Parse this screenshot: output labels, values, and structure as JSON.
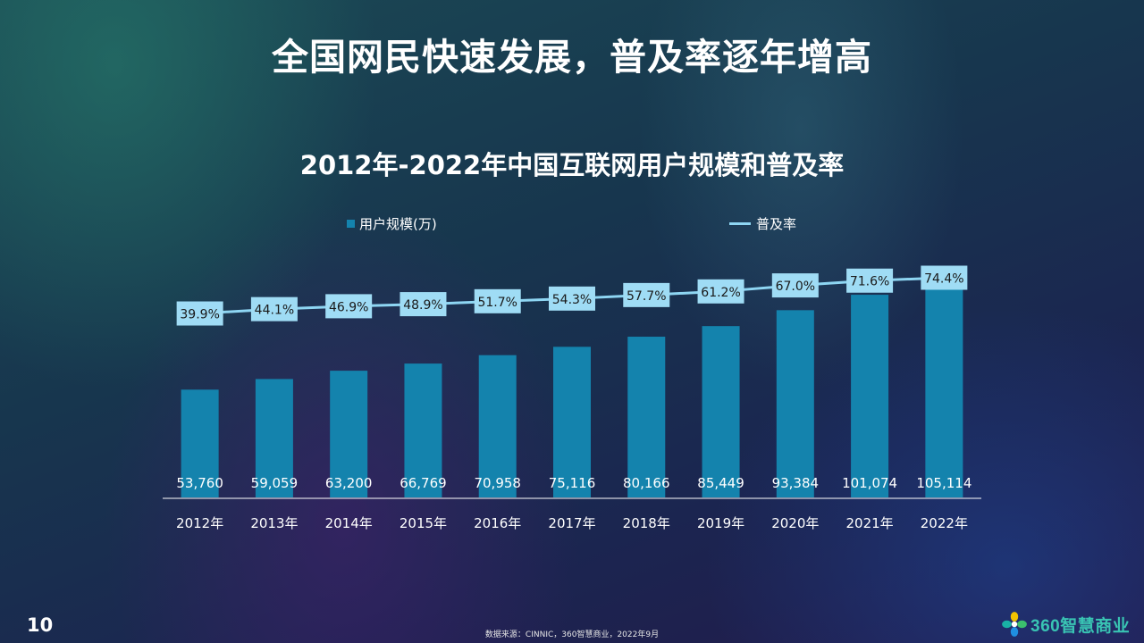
{
  "slide": {
    "title": "全国网民快速发展，普及率逐年增高",
    "page_number": "10",
    "source": "数据来源：CINNIC，360智慧商业，2022年9月",
    "brand_name": "360智慧商业"
  },
  "colors": {
    "bar": "#1483ad",
    "line": "#8ed6f3",
    "label_box": "#9fdcf5",
    "axis": "#ffffff",
    "brand": "#39c4b3"
  },
  "chart_data": {
    "type": "bar",
    "title": "2012年-2022年中国互联网用户规模和普及率",
    "categories": [
      "2012年",
      "2013年",
      "2014年",
      "2015年",
      "2016年",
      "2017年",
      "2018年",
      "2019年",
      "2020年",
      "2021年",
      "2022年"
    ],
    "series": [
      {
        "name": "用户规模(万)",
        "type": "bar",
        "axis": "left",
        "values": [
          53760,
          59059,
          63200,
          66769,
          70958,
          75116,
          80166,
          85449,
          93384,
          101074,
          105114
        ],
        "labels": [
          "53,760",
          "59,059",
          "63,200",
          "66,769",
          "70,958",
          "75,116",
          "80,166",
          "85,449",
          "93,384",
          "101,074",
          "105,114"
        ]
      },
      {
        "name": "普及率",
        "type": "line",
        "axis": "right",
        "values": [
          39.9,
          44.1,
          46.9,
          48.9,
          51.7,
          54.3,
          57.7,
          61.2,
          67.0,
          71.6,
          74.4
        ],
        "labels": [
          "39.9%",
          "44.1%",
          "46.9%",
          "48.9%",
          "51.7%",
          "54.3%",
          "57.7%",
          "61.2%",
          "67.0%",
          "71.6%",
          "74.4%"
        ]
      }
    ],
    "legend_position": "top",
    "grid": false
  }
}
